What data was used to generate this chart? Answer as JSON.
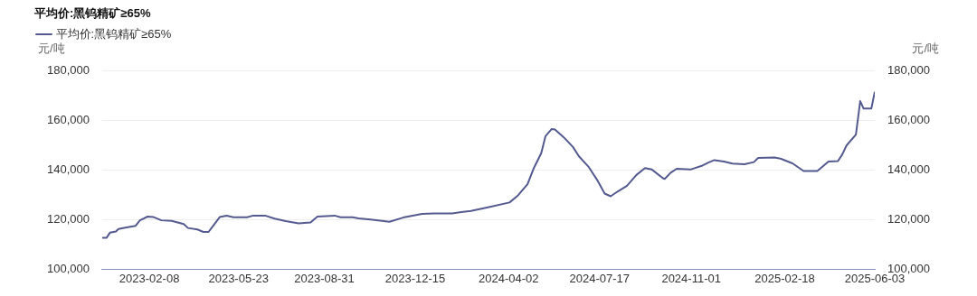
{
  "chart_data": {
    "type": "line",
    "title": "平均价:黑钨精矿≥65%",
    "ylabel": "元/吨",
    "y2label": "元/吨",
    "legend": "top left",
    "grid": "y",
    "marker": "none",
    "line_style": "solid",
    "xlim": [
      "2022-12-15",
      "2025-06-03"
    ],
    "xticks": [
      "2023-02-08",
      "2023-05-23",
      "2023-08-31",
      "2023-12-15",
      "2024-04-02",
      "2024-07-17",
      "2024-11-01",
      "2025-02-18",
      "2025-06-03"
    ],
    "ylim": [
      100000,
      180000
    ],
    "yticks": [
      {
        "value": 100000,
        "label": "100,000"
      },
      {
        "value": 120000,
        "label": "120,000"
      },
      {
        "value": 140000,
        "label": "140,000"
      },
      {
        "value": 160000,
        "label": "160,000"
      },
      {
        "value": 180000,
        "label": "180,000"
      }
    ],
    "y2lim": [
      100000,
      180000
    ],
    "y2ticks": [
      {
        "value": 100000,
        "label": "100,000"
      },
      {
        "value": 120000,
        "label": "120,000"
      },
      {
        "value": 140000,
        "label": "140,000"
      },
      {
        "value": 160000,
        "label": "160,000"
      },
      {
        "value": 180000,
        "label": "180,000"
      }
    ],
    "x": [
      "2022-12-15",
      "2022-12-20",
      "2022-12-24",
      "2022-12-31",
      "2023-01-03",
      "2023-01-11",
      "2023-01-23",
      "2023-01-28",
      "2023-02-06",
      "2023-02-13",
      "2023-02-22",
      "2023-03-06",
      "2023-03-20",
      "2023-03-25",
      "2023-04-05",
      "2023-04-12",
      "2023-04-18",
      "2023-05-01",
      "2023-05-09",
      "2023-05-17",
      "2023-06-02",
      "2023-06-09",
      "2023-06-23",
      "2023-07-04",
      "2023-07-17",
      "2023-08-01",
      "2023-08-15",
      "2023-08-23",
      "2023-09-12",
      "2023-09-19",
      "2023-10-03",
      "2023-10-10",
      "2023-10-24",
      "2023-11-15",
      "2023-12-01",
      "2023-12-23",
      "2024-01-06",
      "2024-01-27",
      "2024-02-18",
      "2024-03-10",
      "2024-04-03",
      "2024-04-13",
      "2024-04-24",
      "2024-05-01",
      "2024-05-10",
      "2024-05-15",
      "2024-05-22",
      "2024-05-26",
      "2024-06-05",
      "2024-06-16",
      "2024-06-23",
      "2024-07-04",
      "2024-07-14",
      "2024-07-23",
      "2024-07-30",
      "2024-08-07",
      "2024-08-18",
      "2024-08-29",
      "2024-09-08",
      "2024-09-16",
      "2024-09-29",
      "2024-10-01",
      "2024-10-08",
      "2024-10-15",
      "2024-10-31",
      "2024-11-14",
      "2024-11-21",
      "2024-11-28",
      "2024-12-09",
      "2024-12-19",
      "2025-01-02",
      "2025-01-13",
      "2025-01-18",
      "2025-02-06",
      "2025-02-13",
      "2025-02-27",
      "2025-03-12",
      "2025-03-28",
      "2025-04-10",
      "2025-04-21",
      "2025-04-26",
      "2025-05-01",
      "2025-05-12",
      "2025-05-17",
      "2025-05-21",
      "2025-05-30",
      "2025-06-03"
    ],
    "series": [
      {
        "name": "平均价:黑钨精矿≥65%",
        "color": "#545a8f",
        "values": [
          112600,
          112600,
          114700,
          115200,
          116200,
          116700,
          117500,
          119700,
          121200,
          121000,
          119700,
          119500,
          118200,
          116600,
          116000,
          115000,
          115000,
          121000,
          121600,
          120900,
          120900,
          121600,
          121600,
          120400,
          119400,
          118500,
          118800,
          121200,
          121600,
          120900,
          120900,
          120500,
          120000,
          119100,
          120800,
          122300,
          122500,
          122500,
          123500,
          125000,
          126900,
          129800,
          134300,
          140500,
          146800,
          153700,
          156500,
          156400,
          153300,
          149300,
          145500,
          141400,
          136100,
          130500,
          129400,
          131300,
          133600,
          138000,
          140800,
          140200,
          136700,
          136400,
          138900,
          140500,
          140200,
          141800,
          143000,
          144000,
          143400,
          142600,
          142300,
          143200,
          144900,
          145100,
          144600,
          142700,
          139600,
          139600,
          143400,
          143600,
          146200,
          149900,
          154300,
          167800,
          164800,
          164800,
          171600
        ]
      }
    ]
  }
}
